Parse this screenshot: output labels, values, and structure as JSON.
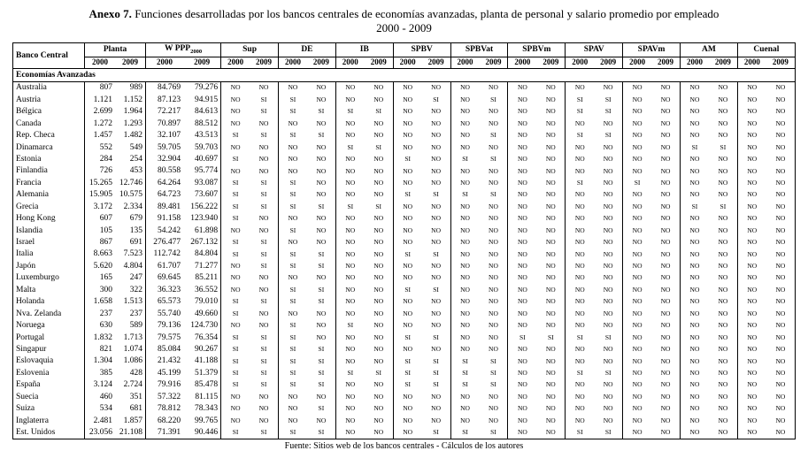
{
  "header": {
    "label": "Anexo 7.",
    "title": "Funciones desarrolladas por los bancos centrales de economías avanzadas, planta de personal y salario promedio por empleado",
    "subtitle": "2000 - 2009"
  },
  "footer": {
    "text": "Fuente: Sitios web de los bancos centrales - Cálculos de los autores"
  },
  "table": {
    "corner_label": "Banco Central",
    "year_labels": [
      "2000",
      "2009"
    ],
    "columns": [
      {
        "label": "Planta"
      },
      {
        "label": "W PPP",
        "subscript": "2000"
      },
      {
        "label": "Sup"
      },
      {
        "label": "DE"
      },
      {
        "label": "IB"
      },
      {
        "label": "SPBV"
      },
      {
        "label": "SPBVat"
      },
      {
        "label": "SPBVm"
      },
      {
        "label": "SPAV"
      },
      {
        "label": "SPAVm"
      },
      {
        "label": "AM"
      },
      {
        "label": "Cuenal"
      }
    ],
    "section_label": "Economías Avanzadas",
    "rows": [
      {
        "name": "Australia",
        "values": [
          "807",
          "989",
          "84.769",
          "79.276",
          "NO",
          "NO",
          "NO",
          "NO",
          "NO",
          "NO",
          "NO",
          "NO",
          "NO",
          "NO",
          "NO",
          "NO",
          "NO",
          "NO",
          "NO",
          "NO",
          "NO",
          "NO",
          "NO",
          "NO"
        ]
      },
      {
        "name": "Austria",
        "values": [
          "1.121",
          "1.152",
          "87.123",
          "94.915",
          "NO",
          "SI",
          "SI",
          "NO",
          "NO",
          "NO",
          "NO",
          "SI",
          "NO",
          "SI",
          "NO",
          "NO",
          "SI",
          "SI",
          "NO",
          "NO",
          "NO",
          "NO",
          "NO",
          "NO"
        ]
      },
      {
        "name": "Bélgica",
        "values": [
          "2.699",
          "1.964",
          "72.217",
          "84.613",
          "NO",
          "SI",
          "SI",
          "SI",
          "SI",
          "SI",
          "NO",
          "NO",
          "NO",
          "NO",
          "NO",
          "NO",
          "SI",
          "SI",
          "NO",
          "NO",
          "NO",
          "NO",
          "NO",
          "NO"
        ]
      },
      {
        "name": "Canada",
        "values": [
          "1.272",
          "1.293",
          "70.897",
          "88.512",
          "NO",
          "NO",
          "NO",
          "NO",
          "NO",
          "NO",
          "NO",
          "NO",
          "NO",
          "NO",
          "NO",
          "NO",
          "NO",
          "NO",
          "NO",
          "NO",
          "NO",
          "NO",
          "NO",
          "NO"
        ]
      },
      {
        "name": "Rep. Checa",
        "values": [
          "1.457",
          "1.482",
          "32.107",
          "43.513",
          "SI",
          "SI",
          "SI",
          "SI",
          "NO",
          "NO",
          "NO",
          "NO",
          "NO",
          "SI",
          "NO",
          "NO",
          "SI",
          "SI",
          "NO",
          "NO",
          "NO",
          "NO",
          "NO",
          "NO"
        ]
      },
      {
        "name": "Dinamarca",
        "values": [
          "552",
          "549",
          "59.705",
          "59.703",
          "NO",
          "NO",
          "NO",
          "NO",
          "SI",
          "SI",
          "NO",
          "NO",
          "NO",
          "NO",
          "NO",
          "NO",
          "NO",
          "NO",
          "NO",
          "NO",
          "SI",
          "SI",
          "NO",
          "NO"
        ]
      },
      {
        "name": "Estonia",
        "values": [
          "284",
          "254",
          "32.904",
          "40.697",
          "SI",
          "NO",
          "NO",
          "NO",
          "NO",
          "NO",
          "SI",
          "NO",
          "SI",
          "SI",
          "NO",
          "NO",
          "NO",
          "NO",
          "NO",
          "NO",
          "NO",
          "NO",
          "NO",
          "NO"
        ]
      },
      {
        "name": "Finlandia",
        "values": [
          "726",
          "453",
          "80.558",
          "95.774",
          "NO",
          "NO",
          "NO",
          "NO",
          "NO",
          "NO",
          "NO",
          "NO",
          "NO",
          "NO",
          "NO",
          "NO",
          "NO",
          "NO",
          "NO",
          "NO",
          "NO",
          "NO",
          "NO",
          "NO"
        ]
      },
      {
        "name": "Francia",
        "values": [
          "15.265",
          "12.746",
          "64.264",
          "93.087",
          "SI",
          "SI",
          "SI",
          "NO",
          "NO",
          "NO",
          "NO",
          "NO",
          "NO",
          "NO",
          "NO",
          "NO",
          "SI",
          "NO",
          "SI",
          "NO",
          "NO",
          "NO",
          "NO",
          "NO"
        ]
      },
      {
        "name": "Alemania",
        "values": [
          "15.905",
          "10.575",
          "64.723",
          "73.607",
          "SI",
          "SI",
          "SI",
          "NO",
          "NO",
          "NO",
          "SI",
          "SI",
          "SI",
          "SI",
          "NO",
          "NO",
          "NO",
          "NO",
          "NO",
          "NO",
          "NO",
          "NO",
          "NO",
          "NO"
        ]
      },
      {
        "name": "Grecia",
        "values": [
          "3.172",
          "2.334",
          "89.481",
          "156.222",
          "SI",
          "SI",
          "SI",
          "SI",
          "SI",
          "SI",
          "NO",
          "NO",
          "NO",
          "NO",
          "NO",
          "NO",
          "NO",
          "NO",
          "NO",
          "NO",
          "SI",
          "SI",
          "NO",
          "NO"
        ]
      },
      {
        "name": "Hong Kong",
        "values": [
          "607",
          "679",
          "91.158",
          "123.940",
          "SI",
          "NO",
          "NO",
          "NO",
          "NO",
          "NO",
          "NO",
          "NO",
          "NO",
          "NO",
          "NO",
          "NO",
          "NO",
          "NO",
          "NO",
          "NO",
          "NO",
          "NO",
          "NO",
          "NO"
        ]
      },
      {
        "name": "Islandia",
        "values": [
          "105",
          "135",
          "54.242",
          "61.898",
          "NO",
          "NO",
          "SI",
          "NO",
          "NO",
          "NO",
          "NO",
          "NO",
          "NO",
          "NO",
          "NO",
          "NO",
          "NO",
          "NO",
          "NO",
          "NO",
          "NO",
          "NO",
          "NO",
          "NO"
        ]
      },
      {
        "name": "Israel",
        "values": [
          "867",
          "691",
          "276.477",
          "267.132",
          "SI",
          "SI",
          "NO",
          "NO",
          "NO",
          "NO",
          "NO",
          "NO",
          "NO",
          "NO",
          "NO",
          "NO",
          "NO",
          "NO",
          "NO",
          "NO",
          "NO",
          "NO",
          "NO",
          "NO"
        ]
      },
      {
        "name": "Italia",
        "values": [
          "8.663",
          "7.523",
          "112.742",
          "84.804",
          "SI",
          "SI",
          "SI",
          "SI",
          "NO",
          "NO",
          "SI",
          "SI",
          "NO",
          "NO",
          "NO",
          "NO",
          "NO",
          "NO",
          "NO",
          "NO",
          "NO",
          "NO",
          "NO",
          "NO"
        ]
      },
      {
        "name": "Japón",
        "values": [
          "5.620",
          "4.804",
          "61.707",
          "71.277",
          "NO",
          "SI",
          "SI",
          "SI",
          "NO",
          "NO",
          "NO",
          "NO",
          "NO",
          "NO",
          "NO",
          "NO",
          "NO",
          "NO",
          "NO",
          "NO",
          "NO",
          "NO",
          "NO",
          "NO"
        ]
      },
      {
        "name": "Luxemburgo",
        "values": [
          "165",
          "247",
          "69.645",
          "85.211",
          "NO",
          "NO",
          "NO",
          "NO",
          "NO",
          "NO",
          "NO",
          "NO",
          "NO",
          "NO",
          "NO",
          "NO",
          "NO",
          "NO",
          "NO",
          "NO",
          "NO",
          "NO",
          "NO",
          "NO"
        ]
      },
      {
        "name": "Malta",
        "values": [
          "300",
          "322",
          "36.323",
          "36.552",
          "NO",
          "NO",
          "SI",
          "SI",
          "NO",
          "NO",
          "SI",
          "SI",
          "NO",
          "NO",
          "NO",
          "NO",
          "NO",
          "NO",
          "NO",
          "NO",
          "NO",
          "NO",
          "NO",
          "NO"
        ]
      },
      {
        "name": "Holanda",
        "values": [
          "1.658",
          "1.513",
          "65.573",
          "79.010",
          "SI",
          "SI",
          "SI",
          "SI",
          "NO",
          "NO",
          "NO",
          "NO",
          "NO",
          "NO",
          "NO",
          "NO",
          "NO",
          "NO",
          "NO",
          "NO",
          "NO",
          "NO",
          "NO",
          "NO"
        ]
      },
      {
        "name": "Nva. Zelanda",
        "values": [
          "237",
          "237",
          "55.740",
          "49.660",
          "SI",
          "NO",
          "NO",
          "NO",
          "NO",
          "NO",
          "NO",
          "NO",
          "NO",
          "NO",
          "NO",
          "NO",
          "NO",
          "NO",
          "NO",
          "NO",
          "NO",
          "NO",
          "NO",
          "NO"
        ]
      },
      {
        "name": "Noruega",
        "values": [
          "630",
          "589",
          "79.136",
          "124.730",
          "NO",
          "NO",
          "SI",
          "NO",
          "SI",
          "NO",
          "NO",
          "NO",
          "NO",
          "NO",
          "NO",
          "NO",
          "NO",
          "NO",
          "NO",
          "NO",
          "NO",
          "NO",
          "NO",
          "NO"
        ]
      },
      {
        "name": "Portugal",
        "values": [
          "1.832",
          "1.713",
          "79.575",
          "76.354",
          "SI",
          "SI",
          "SI",
          "NO",
          "NO",
          "NO",
          "SI",
          "SI",
          "NO",
          "NO",
          "SI",
          "SI",
          "SI",
          "SI",
          "NO",
          "NO",
          "NO",
          "NO",
          "NO",
          "NO"
        ]
      },
      {
        "name": "Singapur",
        "values": [
          "821",
          "1.074",
          "85.084",
          "90.267",
          "SI",
          "SI",
          "SI",
          "SI",
          "NO",
          "NO",
          "NO",
          "NO",
          "NO",
          "NO",
          "NO",
          "NO",
          "NO",
          "NO",
          "NO",
          "NO",
          "NO",
          "NO",
          "NO",
          "NO"
        ]
      },
      {
        "name": "Eslovaquia",
        "values": [
          "1.304",
          "1.086",
          "21.432",
          "41.188",
          "SI",
          "SI",
          "SI",
          "SI",
          "NO",
          "NO",
          "SI",
          "SI",
          "SI",
          "SI",
          "NO",
          "NO",
          "NO",
          "NO",
          "NO",
          "NO",
          "NO",
          "NO",
          "NO",
          "NO"
        ]
      },
      {
        "name": "Eslovenia",
        "values": [
          "385",
          "428",
          "45.199",
          "51.379",
          "SI",
          "SI",
          "SI",
          "SI",
          "SI",
          "SI",
          "SI",
          "SI",
          "SI",
          "SI",
          "NO",
          "NO",
          "SI",
          "SI",
          "NO",
          "NO",
          "NO",
          "NO",
          "NO",
          "NO"
        ]
      },
      {
        "name": "España",
        "values": [
          "3.124",
          "2.724",
          "79.916",
          "85.478",
          "SI",
          "SI",
          "SI",
          "SI",
          "NO",
          "NO",
          "SI",
          "SI",
          "SI",
          "SI",
          "NO",
          "NO",
          "NO",
          "NO",
          "NO",
          "NO",
          "NO",
          "NO",
          "NO",
          "NO"
        ]
      },
      {
        "name": "Suecia",
        "values": [
          "460",
          "351",
          "57.322",
          "81.115",
          "NO",
          "NO",
          "NO",
          "NO",
          "NO",
          "NO",
          "NO",
          "NO",
          "NO",
          "NO",
          "NO",
          "NO",
          "NO",
          "NO",
          "NO",
          "NO",
          "NO",
          "NO",
          "NO",
          "NO"
        ]
      },
      {
        "name": "Suiza",
        "values": [
          "534",
          "681",
          "78.812",
          "78.343",
          "NO",
          "NO",
          "NO",
          "SI",
          "NO",
          "NO",
          "NO",
          "NO",
          "NO",
          "NO",
          "NO",
          "NO",
          "NO",
          "NO",
          "NO",
          "NO",
          "NO",
          "NO",
          "NO",
          "NO"
        ]
      },
      {
        "name": "Inglaterra",
        "values": [
          "2.481",
          "1.857",
          "68.220",
          "99.765",
          "NO",
          "NO",
          "NO",
          "NO",
          "NO",
          "NO",
          "NO",
          "NO",
          "NO",
          "NO",
          "NO",
          "NO",
          "NO",
          "NO",
          "NO",
          "NO",
          "NO",
          "NO",
          "NO",
          "NO"
        ]
      },
      {
        "name": "Est. Unidos",
        "values": [
          "23.056",
          "21.108",
          "71.391",
          "90.446",
          "SI",
          "SI",
          "SI",
          "SI",
          "NO",
          "NO",
          "NO",
          "SI",
          "SI",
          "SI",
          "NO",
          "NO",
          "SI",
          "SI",
          "NO",
          "NO",
          "NO",
          "NO",
          "NO",
          "NO"
        ]
      }
    ]
  }
}
